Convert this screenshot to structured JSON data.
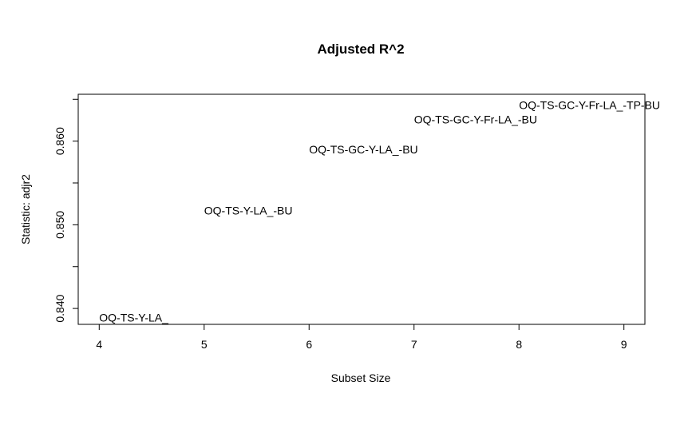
{
  "chart_data": {
    "type": "scatter",
    "title": "Adjusted R^2",
    "xlabel": "Subset Size",
    "ylabel": "Statistic: adjr2",
    "xlim": [
      3.8,
      9.2
    ],
    "ylim": [
      0.8381,
      0.8656
    ],
    "x_ticks": [
      4,
      5,
      6,
      7,
      8,
      9
    ],
    "y_ticks": [
      0.84,
      0.845,
      0.85,
      0.855,
      0.86,
      0.865
    ],
    "y_tick_labels": [
      "0.840",
      "",
      "0.850",
      "",
      "0.860",
      ""
    ],
    "grid": false,
    "legend": "none",
    "points": [
      {
        "x": 4,
        "y": 0.8389,
        "label": "OQ-TS-Y-LA_"
      },
      {
        "x": 5,
        "y": 0.8517,
        "label": "OQ-TS-Y-LA_-BU"
      },
      {
        "x": 6,
        "y": 0.859,
        "label": "OQ-TS-GC-Y-LA_-BU"
      },
      {
        "x": 7,
        "y": 0.8626,
        "label": "OQ-TS-GC-Y-Fr-LA_-BU"
      },
      {
        "x": 8,
        "y": 0.8643,
        "label": "OQ-TS-GC-Y-Fr-LA_-TP-BU"
      }
    ]
  }
}
